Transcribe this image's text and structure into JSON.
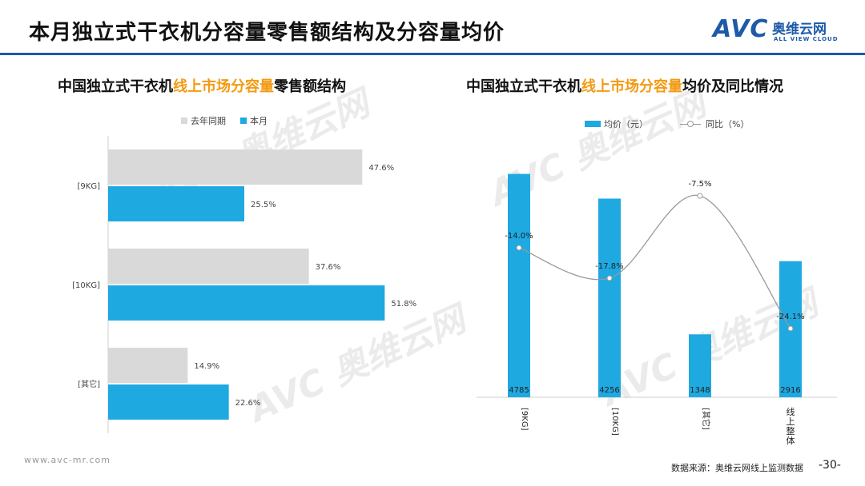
{
  "page": {
    "title": "本月独立式干衣机分容量零售额结构及分容量均价",
    "logo_mark": "AVC",
    "logo_cn": "奥维云网",
    "logo_en": "ALL VIEW CLOUD",
    "brand_color": "#1d5aa8",
    "highlight_color": "#f39a12"
  },
  "left_chart": {
    "subtitle_pre": "中国独立式干衣机",
    "subtitle_hl": "线上市场分容量",
    "subtitle_post": "零售额结构",
    "legend": [
      "去年同期",
      "本月"
    ]
  },
  "right_chart": {
    "subtitle_pre": "中国独立式干衣机",
    "subtitle_hl": "线上市场分容量",
    "subtitle_post": "均价及同比情况",
    "legend": [
      "均价（元）",
      "同比（%）"
    ]
  },
  "footer": {
    "url": "www.avc-mr.com",
    "source": "数据来源：奥维云网线上监测数据",
    "page_number": "-30-"
  },
  "watermark_text": "AVC 奥维云网",
  "watermark_sub": "ALL VIEW CLOUD",
  "chart_data": [
    {
      "type": "bar",
      "orientation": "horizontal",
      "categories": [
        "[9KG]",
        "[10KG]",
        "[其它]"
      ],
      "series": [
        {
          "name": "去年同期",
          "values": [
            47.6,
            37.6,
            14.9
          ],
          "labels": [
            "47.6%",
            "37.6%",
            "14.9%"
          ],
          "color": "#d9d9d9"
        },
        {
          "name": "本月",
          "values": [
            25.5,
            51.8,
            22.6
          ],
          "labels": [
            "25.5%",
            "51.8%",
            "22.6%"
          ],
          "color": "#1ea9e1"
        }
      ],
      "xlim": [
        0,
        60
      ]
    },
    {
      "type": "bar",
      "categories": [
        "[9KG]",
        "[10KG]",
        "[其它]",
        "线上整体"
      ],
      "series": [
        {
          "name": "均价（元）",
          "type": "bar",
          "values": [
            4785,
            4256,
            1348,
            2916
          ],
          "labels": [
            "4785",
            "4256",
            "1348",
            "2916"
          ],
          "color": "#1ea9e1"
        },
        {
          "name": "同比（%）",
          "type": "line",
          "values": [
            -14.0,
            -17.8,
            -7.5,
            -24.1
          ],
          "labels": [
            "-14.0%",
            "-17.8%",
            "-7.5%",
            "-24.1%"
          ],
          "color": "#999999"
        }
      ],
      "ylim_bar": [
        0,
        5000
      ],
      "ylim_line": [
        -28,
        -4
      ]
    }
  ]
}
